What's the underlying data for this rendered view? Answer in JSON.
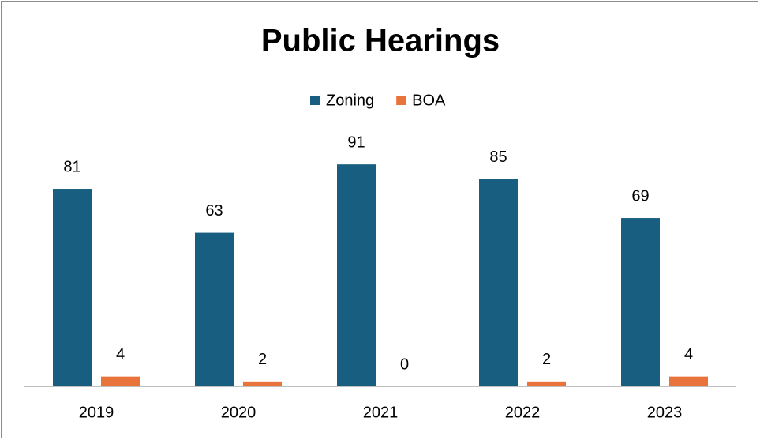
{
  "chart_data": {
    "type": "bar",
    "title": "Public Hearings",
    "categories": [
      "2019",
      "2020",
      "2021",
      "2022",
      "2023"
    ],
    "series": [
      {
        "name": "Zoning",
        "color": "#175e80",
        "values": [
          81,
          63,
          91,
          85,
          69
        ]
      },
      {
        "name": "BOA",
        "color": "#e8743b",
        "values": [
          4,
          2,
          0,
          2,
          4
        ]
      }
    ],
    "legend": "top"
  }
}
